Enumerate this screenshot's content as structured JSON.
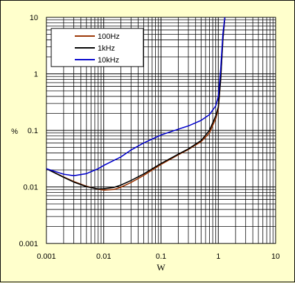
{
  "chart_data": {
    "type": "line",
    "title": "",
    "xlabel": "W",
    "ylabel": "%",
    "xscale": "log",
    "yscale": "log",
    "xlim": [
      0.001,
      10
    ],
    "ylim": [
      0.001,
      10
    ],
    "x_tick_labels": [
      "0.001",
      "0.01",
      "0.1",
      "1",
      "10"
    ],
    "y_tick_labels": [
      "0.001",
      "0.01",
      "0.1",
      "1",
      "10"
    ],
    "grid": true,
    "legend_position": "top-left",
    "series": [
      {
        "name": "100Hz",
        "color": "#993300",
        "x": [
          0.001,
          0.002,
          0.003,
          0.005,
          0.008,
          0.01,
          0.015,
          0.02,
          0.03,
          0.05,
          0.1,
          0.2,
          0.3,
          0.5,
          0.7,
          0.9,
          1.0,
          1.1,
          1.2,
          1.3
        ],
        "y": [
          0.021,
          0.015,
          0.0125,
          0.0103,
          0.0091,
          0.0088,
          0.009,
          0.0099,
          0.012,
          0.016,
          0.025,
          0.037,
          0.046,
          0.063,
          0.09,
          0.16,
          0.24,
          0.8,
          4.0,
          10
        ]
      },
      {
        "name": "1kHz",
        "color": "#000000",
        "x": [
          0.001,
          0.002,
          0.003,
          0.005,
          0.008,
          0.01,
          0.015,
          0.02,
          0.03,
          0.05,
          0.1,
          0.2,
          0.3,
          0.5,
          0.7,
          0.9,
          1.0,
          1.1,
          1.2,
          1.3
        ],
        "y": [
          0.021,
          0.0148,
          0.0122,
          0.0101,
          0.0092,
          0.0093,
          0.0098,
          0.0108,
          0.013,
          0.017,
          0.026,
          0.038,
          0.047,
          0.066,
          0.1,
          0.18,
          0.26,
          0.8,
          4.0,
          10
        ]
      },
      {
        "name": "10kHz",
        "color": "#0000cc",
        "x": [
          0.001,
          0.002,
          0.003,
          0.005,
          0.008,
          0.01,
          0.02,
          0.03,
          0.05,
          0.1,
          0.2,
          0.3,
          0.5,
          0.7,
          0.9,
          1.0,
          1.1,
          1.2,
          1.3
        ],
        "y": [
          0.021,
          0.0168,
          0.0158,
          0.0172,
          0.021,
          0.024,
          0.034,
          0.045,
          0.06,
          0.083,
          0.105,
          0.12,
          0.15,
          0.19,
          0.27,
          0.4,
          1.2,
          5.0,
          10
        ]
      }
    ]
  }
}
